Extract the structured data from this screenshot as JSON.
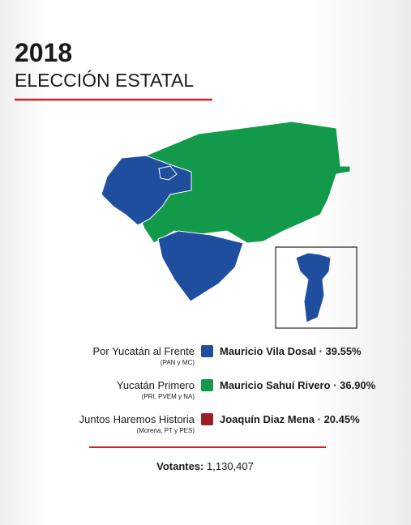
{
  "header": {
    "year": "2018",
    "title": "ELECCIÓN ESTATAL"
  },
  "legend": [
    {
      "coalition": "Por Yucatán al Frente",
      "parties": "(PAN y MC)",
      "candidate": "Mauricio Vila Dosal · 39.55%",
      "color": "#1f4e9e"
    },
    {
      "coalition": "Yucatán Primero",
      "parties": "(PRI, PVEM y NA)",
      "candidate": "Mauricio Sahuí Rivero · 36.90%",
      "color": "#13994a"
    },
    {
      "coalition": "Juntos Haremos Historia",
      "parties": "(Morena, PT y PES)",
      "candidate": "Joaquín Diaz Mena · 20.45%",
      "color": "#9c1f24"
    }
  ],
  "footer": {
    "label": "Votantes:",
    "value": "1,130,407"
  }
}
